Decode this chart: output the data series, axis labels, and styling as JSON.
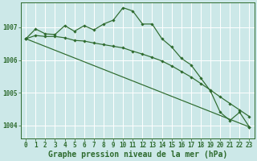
{
  "background_color": "#cce8e8",
  "grid_color": "#ffffff",
  "line_color": "#2d6a2d",
  "ylim": [
    1003.6,
    1007.75
  ],
  "yticks": [
    1004,
    1005,
    1006,
    1007
  ],
  "xticks": [
    0,
    1,
    2,
    3,
    4,
    5,
    6,
    7,
    8,
    9,
    10,
    11,
    12,
    13,
    14,
    15,
    16,
    17,
    18,
    19,
    20,
    21,
    22,
    23
  ],
  "xlabel": "Graphe pression niveau de la mer (hPa)",
  "series1_x": [
    0,
    1,
    2,
    3,
    4,
    5,
    6,
    7,
    8,
    9,
    10,
    11,
    12,
    13,
    14,
    15,
    16,
    17,
    18,
    19,
    20,
    21,
    22,
    23
  ],
  "series1_y": [
    1006.65,
    1006.95,
    1006.8,
    1006.78,
    1007.05,
    1006.88,
    1007.05,
    1006.92,
    1007.1,
    1007.22,
    1007.6,
    1007.5,
    1007.1,
    1007.1,
    1006.65,
    1006.4,
    1006.05,
    1005.85,
    1005.45,
    1005.05,
    1004.4,
    1004.15,
    1004.4,
    1003.95
  ],
  "series2_x": [
    0,
    1,
    2,
    3,
    4,
    5,
    6,
    7,
    8,
    9,
    10,
    11,
    12,
    13,
    14,
    15,
    16,
    17,
    18,
    19,
    20,
    21,
    22,
    23
  ],
  "series2_y": [
    1006.65,
    1006.75,
    1006.72,
    1006.72,
    1006.68,
    1006.6,
    1006.58,
    1006.52,
    1006.47,
    1006.42,
    1006.37,
    1006.27,
    1006.18,
    1006.08,
    1005.97,
    1005.82,
    1005.65,
    1005.48,
    1005.28,
    1005.08,
    1004.87,
    1004.67,
    1004.47,
    1004.27
  ],
  "series3_x": [
    0,
    23
  ],
  "series3_y": [
    1006.65,
    1003.95
  ],
  "tick_fontsize": 5.5,
  "label_fontsize": 7.0
}
